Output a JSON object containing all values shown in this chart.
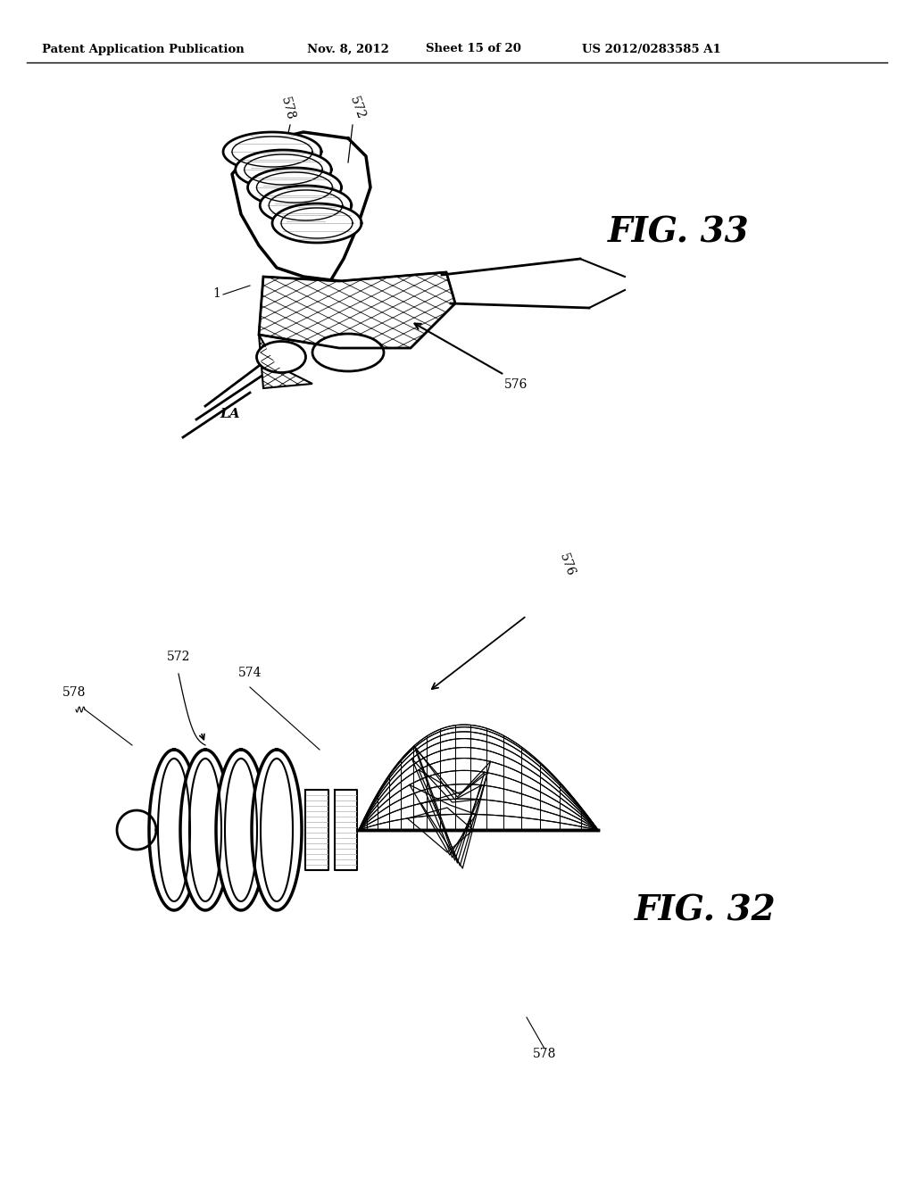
{
  "background_color": "#ffffff",
  "header_text": "Patent Application Publication",
  "header_date": "Nov. 8, 2012",
  "header_sheet": "Sheet 15 of 20",
  "header_patent": "US 2012/0283585 A1",
  "fig33_label": "FIG. 33",
  "fig32_label": "FIG. 32",
  "text_color": "#000000",
  "line_color": "#000000"
}
